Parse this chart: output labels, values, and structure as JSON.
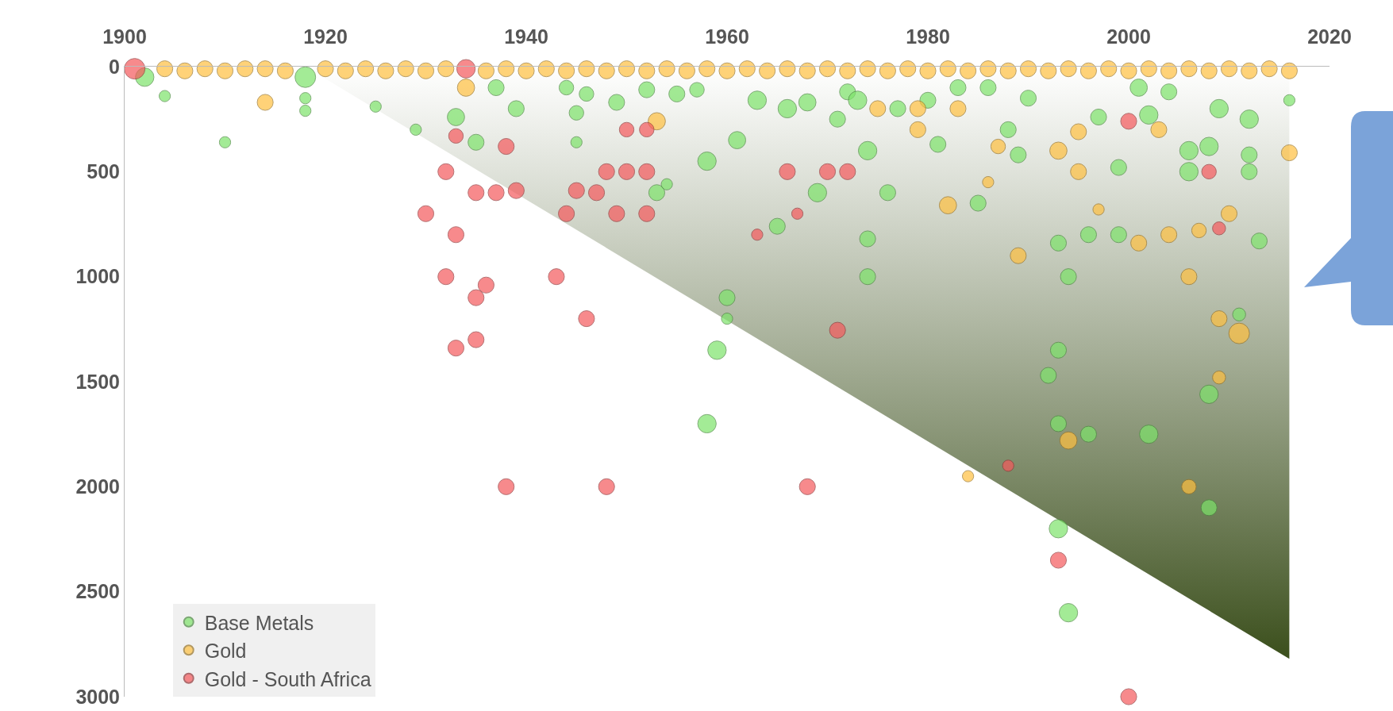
{
  "chart_data": {
    "type": "bubble",
    "xlim": [
      1900,
      2020
    ],
    "xticks": [
      1900,
      1920,
      1940,
      1960,
      1980,
      2000,
      2020
    ],
    "ylim": [
      3000,
      0
    ],
    "yticks": [
      0,
      500,
      1000,
      1500,
      2000,
      2500,
      3000
    ],
    "legend": "bottom left",
    "marker": "circle",
    "series": [
      {
        "type": "area",
        "marker": "none",
        "color": "#3b4f1c",
        "x": [
          1918,
          2016
        ],
        "values": [
          0,
          2820
        ]
      },
      {
        "name": "Base Metals",
        "color": "#7de36a",
        "x": [
          1902,
          1904,
          1910,
          1918,
          1918,
          1918,
          1925,
          1929,
          1933,
          1935,
          1937,
          1939,
          1944,
          1945,
          1945,
          1946,
          1949,
          1952,
          1953,
          1954,
          1955,
          1957,
          1958,
          1958,
          1959,
          1960,
          1960,
          1961,
          1963,
          1965,
          1966,
          1968,
          1969,
          1971,
          1972,
          1973,
          1974,
          1974,
          1974,
          1976,
          1977,
          1981,
          1980,
          1983,
          1985,
          1986,
          1988,
          1989,
          1990,
          1992,
          1993,
          1993,
          1993,
          1993,
          1994,
          1994,
          1996,
          1996,
          1997,
          1999,
          1999,
          2001,
          2002,
          2002,
          2004,
          2006,
          2006,
          2008,
          2008,
          2008,
          2009,
          2011,
          2012,
          2012,
          2013,
          2012,
          2016
        ],
        "values": [
          50,
          140,
          360,
          50,
          150,
          210,
          190,
          300,
          240,
          360,
          100,
          200,
          100,
          220,
          360,
          130,
          170,
          110,
          600,
          560,
          130,
          110,
          450,
          1700,
          1350,
          1100,
          1200,
          350,
          160,
          760,
          200,
          170,
          600,
          250,
          120,
          160,
          400,
          820,
          1000,
          600,
          200,
          370,
          160,
          100,
          650,
          100,
          300,
          420,
          150,
          1470,
          840,
          1350,
          1700,
          2200,
          2600,
          1000,
          1750,
          800,
          240,
          480,
          800,
          100,
          230,
          1750,
          120,
          400,
          500,
          1560,
          2100,
          380,
          200,
          1180,
          420,
          500,
          830,
          250,
          160
        ],
        "sizes": [
          0.8,
          0.3,
          0.3,
          1,
          0.3,
          0.3,
          0.3,
          0.3,
          0.7,
          0.6,
          0.6,
          0.6,
          0.5,
          0.5,
          0.3,
          0.5,
          0.6,
          0.6,
          0.6,
          0.3,
          0.6,
          0.5,
          0.8,
          0.8,
          0.8,
          0.6,
          0.3,
          0.7,
          0.8,
          0.6,
          0.8,
          0.7,
          0.8,
          0.6,
          0.6,
          0.8,
          0.8,
          0.6,
          0.6,
          0.6,
          0.6,
          0.6,
          0.6,
          0.6,
          0.6,
          0.6,
          0.6,
          0.6,
          0.6,
          0.6,
          0.6,
          0.6,
          0.6,
          0.8,
          0.8,
          0.6,
          0.6,
          0.6,
          0.6,
          0.6,
          0.6,
          0.7,
          0.8,
          0.8,
          0.6,
          0.8,
          0.8,
          0.8,
          0.6,
          0.8,
          0.8,
          0.4,
          0.6,
          0.6,
          0.6,
          0.8,
          0.3
        ]
      },
      {
        "name": "Gold",
        "color": "#ffc040",
        "x": [
          1904,
          1906,
          1908,
          1910,
          1912,
          1914,
          1916,
          1920,
          1922,
          1924,
          1926,
          1928,
          1930,
          1932,
          1936,
          1938,
          1940,
          1942,
          1944,
          1946,
          1948,
          1950,
          1952,
          1954,
          1956,
          1958,
          1960,
          1962,
          1964,
          1966,
          1968,
          1970,
          1972,
          1974,
          1976,
          1978,
          1980,
          1982,
          1984,
          1986,
          1988,
          1990,
          1992,
          1994,
          1996,
          1998,
          2000,
          2002,
          2004,
          2006,
          2008,
          2010,
          2012,
          2014,
          2016,
          1914,
          1934,
          1953,
          1975,
          1979,
          1979,
          1983,
          1984,
          1986,
          1982,
          1987,
          1989,
          1993,
          1994,
          1995,
          1995,
          1997,
          2001,
          2003,
          2004,
          2006,
          2006,
          2007,
          2009,
          2009,
          2010,
          2011,
          2016
        ],
        "values": [
          10,
          20,
          10,
          20,
          10,
          10,
          20,
          10,
          20,
          10,
          20,
          10,
          20,
          10,
          20,
          10,
          20,
          10,
          20,
          10,
          20,
          10,
          20,
          10,
          20,
          10,
          20,
          10,
          20,
          10,
          20,
          10,
          20,
          10,
          20,
          10,
          20,
          10,
          20,
          10,
          20,
          10,
          20,
          10,
          20,
          10,
          20,
          10,
          20,
          10,
          20,
          10,
          20,
          10,
          20,
          170,
          100,
          260,
          200,
          200,
          300,
          200,
          1950,
          550,
          660,
          380,
          900,
          400,
          1780,
          500,
          310,
          680,
          840,
          300,
          800,
          1000,
          2000,
          780,
          1200,
          1480,
          700,
          1270,
          410
        ],
        "sizes": [
          0.6,
          0.6,
          0.6,
          0.6,
          0.6,
          0.6,
          0.6,
          0.6,
          0.6,
          0.6,
          0.6,
          0.6,
          0.6,
          0.6,
          0.6,
          0.6,
          0.6,
          0.6,
          0.6,
          0.6,
          0.6,
          0.6,
          0.6,
          0.6,
          0.6,
          0.6,
          0.6,
          0.6,
          0.6,
          0.6,
          0.6,
          0.6,
          0.6,
          0.6,
          0.6,
          0.6,
          0.6,
          0.6,
          0.6,
          0.6,
          0.6,
          0.6,
          0.6,
          0.6,
          0.6,
          0.6,
          0.6,
          0.6,
          0.6,
          0.6,
          0.6,
          0.6,
          0.6,
          0.6,
          0.6,
          0.6,
          0.7,
          0.7,
          0.6,
          0.6,
          0.6,
          0.6,
          0.3,
          0.3,
          0.7,
          0.5,
          0.6,
          0.7,
          0.7,
          0.6,
          0.6,
          0.3,
          0.6,
          0.6,
          0.6,
          0.6,
          0.5,
          0.5,
          0.6,
          0.4,
          0.6,
          1,
          0.6
        ]
      },
      {
        "name": "Gold - South Africa",
        "color": "#f5595c",
        "x": [
          1901,
          1930,
          1932,
          1932,
          1933,
          1933,
          1933,
          1934,
          1935,
          1937,
          1935,
          1936,
          1935,
          1938,
          1939,
          1938,
          1943,
          1944,
          1945,
          1947,
          1946,
          1948,
          1948,
          1950,
          1949,
          1950,
          1952,
          1952,
          1952,
          1963,
          1966,
          1967,
          1968,
          1970,
          1972,
          1971,
          1988,
          1993,
          2000,
          2000,
          2008,
          2009
        ],
        "values": [
          10,
          700,
          500,
          1000,
          800,
          1340,
          330,
          10,
          600,
          600,
          1100,
          1040,
          1300,
          380,
          590,
          2000,
          1000,
          700,
          590,
          600,
          1200,
          2000,
          500,
          500,
          700,
          300,
          300,
          500,
          700,
          800,
          500,
          700,
          2000,
          500,
          500,
          1255,
          1900,
          2350,
          3000,
          260,
          500,
          770
        ],
        "sizes": [
          1,
          0.6,
          0.6,
          0.6,
          0.6,
          0.6,
          0.5,
          0.8,
          0.6,
          0.6,
          0.6,
          0.6,
          0.6,
          0.6,
          0.6,
          0.6,
          0.6,
          0.6,
          0.6,
          0.6,
          0.6,
          0.6,
          0.6,
          0.6,
          0.6,
          0.5,
          0.5,
          0.6,
          0.6,
          0.3,
          0.6,
          0.3,
          0.6,
          0.6,
          0.6,
          0.6,
          0.3,
          0.6,
          0.6,
          0.6,
          0.5,
          0.4
        ]
      }
    ]
  }
}
